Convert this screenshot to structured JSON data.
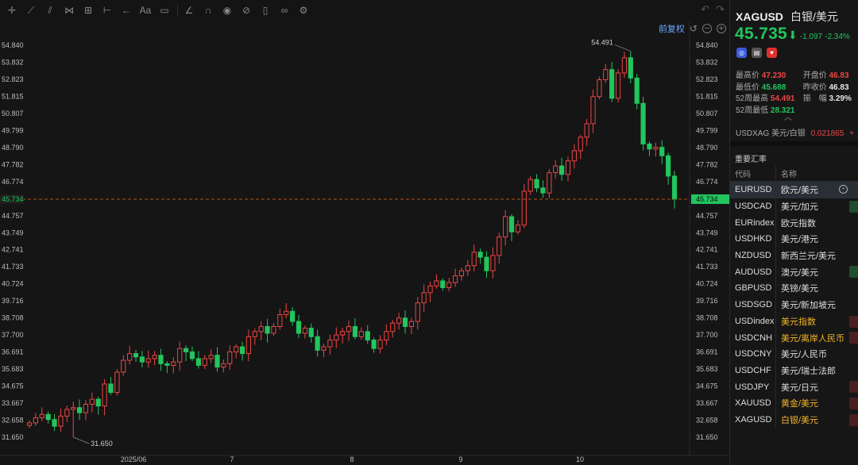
{
  "toolbar": {
    "tools": [
      "crosshair-icon",
      "trend-line-icon",
      "fib-icon",
      "pattern-icon",
      "measure-icon",
      "range-icon",
      "arrow-icon",
      "text-icon",
      "comment-icon",
      "brush-icon",
      "magnet-icon",
      "eye-icon",
      "hide-icon",
      "trash-icon",
      "visibility-icon",
      "settings-icon"
    ],
    "text_tool": "Aa"
  },
  "chart": {
    "adjust_label": "前复权",
    "current_price_label": "45.734",
    "y_ticks": [
      "54.840",
      "53.832",
      "52.823",
      "51.815",
      "50.807",
      "49.799",
      "48.790",
      "47.782",
      "46.774",
      "45.766",
      "44.757",
      "43.749",
      "42.741",
      "41.733",
      "40.724",
      "39.716",
      "38.708",
      "37.700",
      "36.691",
      "35.683",
      "34.675",
      "33.667",
      "32.658",
      "31.650"
    ],
    "x_ticks": [
      "2025/06",
      "7",
      "8",
      "9",
      "10"
    ],
    "high_marker": "54.491",
    "low_marker": "31.650"
  },
  "chart_data": {
    "type": "candlestick",
    "symbol": "XAGUSD",
    "ylim": [
      31.2,
      55.3
    ],
    "x_labels": [
      "2025/06",
      "7",
      "8",
      "9",
      "10"
    ],
    "last_price": 45.734,
    "period_high": 54.491,
    "period_low": 31.65,
    "closes_approx": [
      32.5,
      32.8,
      33.0,
      32.7,
      32.3,
      32.9,
      33.3,
      33.4,
      33.1,
      33.6,
      33.9,
      33.5,
      34.8,
      34.3,
      35.5,
      36.2,
      36.6,
      36.4,
      36.1,
      36.3,
      36.5,
      36.0,
      35.9,
      36.1,
      36.9,
      36.7,
      36.3,
      35.9,
      36.3,
      36.5,
      35.8,
      36.0,
      36.7,
      37.0,
      36.6,
      37.6,
      37.9,
      38.2,
      37.8,
      38.2,
      38.9,
      39.1,
      38.5,
      37.8,
      38.1,
      37.6,
      36.8,
      37.0,
      37.4,
      37.7,
      37.9,
      38.2,
      37.6,
      37.9,
      37.4,
      36.9,
      37.4,
      37.9,
      38.4,
      38.7,
      38.2,
      38.5,
      39.6,
      40.2,
      40.6,
      40.9,
      40.5,
      40.8,
      41.2,
      41.5,
      41.8,
      42.6,
      42.3,
      41.5,
      42.4,
      43.5,
      44.7,
      43.8,
      44.2,
      46.2,
      46.9,
      46.4,
      46.1,
      47.3,
      47.7,
      47.2,
      48.0,
      48.6,
      49.4,
      50.2,
      51.8,
      52.8,
      53.4,
      51.7,
      53.2,
      54.1,
      52.9,
      51.4,
      49.0,
      48.7,
      48.8,
      48.3,
      47.1,
      45.73
    ]
  },
  "panel": {
    "symbol_code": "XAGUSD",
    "symbol_name": "白银/美元",
    "price": "45.735",
    "price_arrow": "⬇",
    "change": "-1.097",
    "change_pct": "-2.34%",
    "stats": [
      {
        "l_label": "最高价",
        "l_value": "47.230",
        "l_tone": "up",
        "r_label": "开盘价",
        "r_value": "46.83",
        "r_tone": "up"
      },
      {
        "l_label": "最低价",
        "l_value": "45.688",
        "l_tone": "dn",
        "r_label": "昨收价",
        "r_value": "46.83",
        "r_tone": "wh"
      },
      {
        "l_label": "52周最高",
        "l_value": "54.491",
        "l_tone": "up",
        "r_label": "振　幅",
        "r_value": "3.29%",
        "r_tone": "wh"
      },
      {
        "l_label": "52周最低",
        "l_value": "28.321",
        "l_tone": "dn",
        "r_label": "",
        "r_value": "",
        "r_tone": "wh"
      }
    ],
    "inverse_label": "USDXAG 美元/白银",
    "inverse_value": "0.021865",
    "inverse_suffix": "+",
    "section_title": "重要汇率",
    "col_code": "代码",
    "col_name": "名称",
    "rates": [
      {
        "code": "EURUSD",
        "name": "欧元/美元",
        "gold": false,
        "ind": "none",
        "sel": true
      },
      {
        "code": "USDCAD",
        "name": "美元/加元",
        "gold": false,
        "ind": "g",
        "sel": false
      },
      {
        "code": "EURindex",
        "name": "欧元指数",
        "gold": false,
        "ind": "none",
        "sel": false
      },
      {
        "code": "USDHKD",
        "name": "美元/港元",
        "gold": false,
        "ind": "none",
        "sel": false
      },
      {
        "code": "NZDUSD",
        "name": "新西兰元/美元",
        "gold": false,
        "ind": "none",
        "sel": false
      },
      {
        "code": "AUDUSD",
        "name": "澳元/美元",
        "gold": false,
        "ind": "g",
        "sel": false
      },
      {
        "code": "GBPUSD",
        "name": "英镑/美元",
        "gold": false,
        "ind": "none",
        "sel": false
      },
      {
        "code": "USDSGD",
        "name": "美元/新加坡元",
        "gold": false,
        "ind": "none",
        "sel": false
      },
      {
        "code": "USDindex",
        "name": "美元指数",
        "gold": true,
        "ind": "r",
        "sel": false
      },
      {
        "code": "USDCNH",
        "name": "美元/离岸人民币",
        "gold": true,
        "ind": "r",
        "sel": false
      },
      {
        "code": "USDCNY",
        "name": "美元/人民币",
        "gold": false,
        "ind": "none",
        "sel": false
      },
      {
        "code": "USDCHF",
        "name": "美元/瑞士法郎",
        "gold": false,
        "ind": "none",
        "sel": false
      },
      {
        "code": "USDJPY",
        "name": "美元/日元",
        "gold": false,
        "ind": "r",
        "sel": false
      },
      {
        "code": "XAUUSD",
        "name": "黄金/美元",
        "gold": true,
        "ind": "r",
        "sel": false
      },
      {
        "code": "XAGUSD",
        "name": "白银/美元",
        "gold": true,
        "ind": "r",
        "sel": false
      }
    ]
  },
  "colors": {
    "up": "#ef4444",
    "down": "#22c55e",
    "accent": "#6fa8ff",
    "background": "#151515"
  }
}
